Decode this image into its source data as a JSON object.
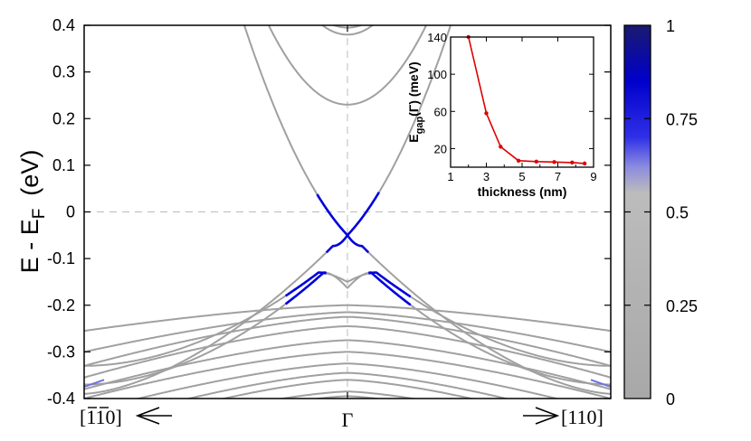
{
  "chart_data": [
    {
      "type": "line",
      "ylabel": "E - E",
      "ylabel_sub": "F",
      "ylabel_unit": "(eV)",
      "ylim": [
        -0.4,
        0.4
      ],
      "yticks": [
        "0.4",
        "0.3",
        "0.2",
        "0.1",
        "0",
        "-0.1",
        "-0.2",
        "-0.3",
        "-0.4"
      ],
      "xlim": [
        -1,
        1
      ],
      "x_labels": {
        "left": "[110]",
        "center": "Γ",
        "right": "[110]"
      },
      "colorbar": {
        "range": [
          0,
          1
        ],
        "tick_labels": [
          "1",
          "0.75",
          "0.5",
          "0.25",
          "0"
        ],
        "colors": {
          "low": "#a8a8a8",
          "mid": "#b8b8b8",
          "high": "#0000cc",
          "top": "#1a1a6e"
        }
      },
      "grid": "dashed lines at x=0 (Γ) and E=0",
      "line_color": "#a0a0a0",
      "highlight_color": "#0000dd",
      "bands": [
        {
          "kind": "conduction",
          "E0": 0.23,
          "m": 1.9,
          "s": 1
        },
        {
          "kind": "conduction",
          "E0": 0.38,
          "m": 2.2,
          "s": 1
        },
        {
          "kind": "conduction",
          "E0": 0.395,
          "m": 2.0,
          "s": 1
        },
        {
          "kind": "dirac_upper",
          "E0": -0.05,
          "v": 0.6,
          "sat": 0.18,
          "s": 1
        },
        {
          "kind": "dirac_lower",
          "E0": -0.05,
          "peakE": -0.073,
          "peakK": 0.055,
          "E_edge": -0.37,
          "s": 1
        },
        {
          "kind": "valence_w",
          "E0": -0.13,
          "center": -0.163,
          "peakK": 0.09,
          "E_edge": -0.37,
          "s": 1
        },
        {
          "kind": "valence_w",
          "E0": -0.13,
          "center": -0.15,
          "peakK": 0.11,
          "E_edge": -0.33,
          "s": 1
        },
        {
          "kind": "valence",
          "E0": -0.2,
          "E_edge": -0.255,
          "s": 0
        },
        {
          "kind": "valence",
          "E0": -0.215,
          "E_edge": -0.3,
          "s": 0
        },
        {
          "kind": "valence",
          "E0": -0.225,
          "E_edge": -0.33,
          "s": 0
        },
        {
          "kind": "valence",
          "E0": -0.245,
          "E_edge": -0.355,
          "s": 0
        },
        {
          "kind": "valence",
          "E0": -0.275,
          "E_edge": -0.38,
          "s": 0
        },
        {
          "kind": "valence",
          "E0": -0.3,
          "E_edge": -0.4,
          "s": 0
        },
        {
          "kind": "valence",
          "E0": -0.325,
          "E_edge": -0.43,
          "s": 0
        },
        {
          "kind": "valence",
          "E0": -0.345,
          "E_edge": -0.46,
          "s": 0
        },
        {
          "kind": "valence",
          "E0": -0.36,
          "E_edge": -0.48,
          "s": 0
        },
        {
          "kind": "valence",
          "E0": -0.385,
          "E_edge": -0.5,
          "s": 0
        },
        {
          "kind": "valence",
          "E0": -0.395,
          "E_edge": -0.52,
          "s": 0
        }
      ]
    },
    {
      "type": "line",
      "xlabel": "thickness (nm)",
      "ylabel": "E",
      "ylabel_sub": "gap",
      "ylabel_tail": "(Γ) (meV)",
      "xlim": [
        1,
        9
      ],
      "ylim": [
        0,
        140
      ],
      "xticks": [
        "1",
        "3",
        "5",
        "7",
        "9"
      ],
      "yticks": [
        "140",
        "100",
        "60",
        "20"
      ],
      "x": [
        2,
        3,
        3.8,
        4.8,
        5.8,
        6.8,
        7.8,
        8.5
      ],
      "y": [
        140,
        58,
        22,
        7,
        6,
        5.5,
        5,
        4
      ],
      "color": "#dd0000"
    }
  ]
}
